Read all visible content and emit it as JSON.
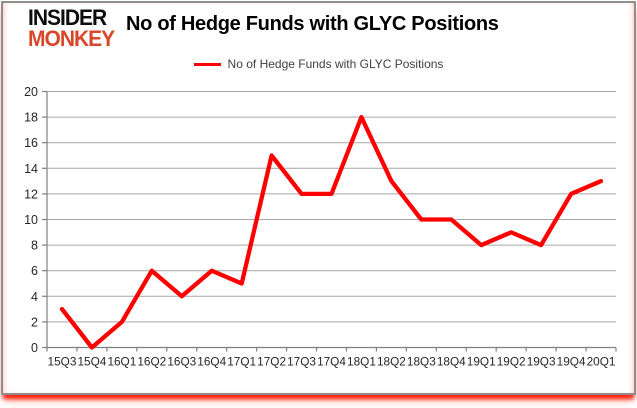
{
  "brand": {
    "line1": "INSIDER",
    "line2": "MONKEY"
  },
  "header": {
    "title": "No of Hedge Funds with GLYC Positions"
  },
  "legend": {
    "label": "No of Hedge Funds with GLYC Positions"
  },
  "colors": {
    "line": "#ff0000",
    "logo_black": "#0d0d0d",
    "logo_red": "#d9472b",
    "grid": "#a6a6a6",
    "axis": "#808080",
    "label": "#262626",
    "legend_text": "#404040",
    "frame_border": "#8e8e8e",
    "bottom_glow": "#ff1500"
  },
  "chart_data": {
    "type": "line",
    "title": "No of Hedge Funds with GLYC Positions",
    "series_name": "No of Hedge Funds with GLYC Positions",
    "categories": [
      "15Q3",
      "15Q4",
      "16Q1",
      "16Q2",
      "16Q3",
      "16Q4",
      "17Q1",
      "17Q2",
      "17Q3",
      "17Q4",
      "18Q1",
      "18Q2",
      "18Q3",
      "18Q4",
      "19Q1",
      "19Q2",
      "19Q3",
      "19Q4",
      "20Q1"
    ],
    "values": [
      3,
      0,
      2,
      6,
      4,
      6,
      5,
      15,
      12,
      12,
      18,
      13,
      10,
      10,
      8,
      9,
      8,
      12,
      13
    ],
    "xlabel": "",
    "ylabel": "",
    "ylim": [
      0,
      20
    ],
    "ytick_step": 2,
    "grid": true,
    "legend_position": "top-center"
  }
}
